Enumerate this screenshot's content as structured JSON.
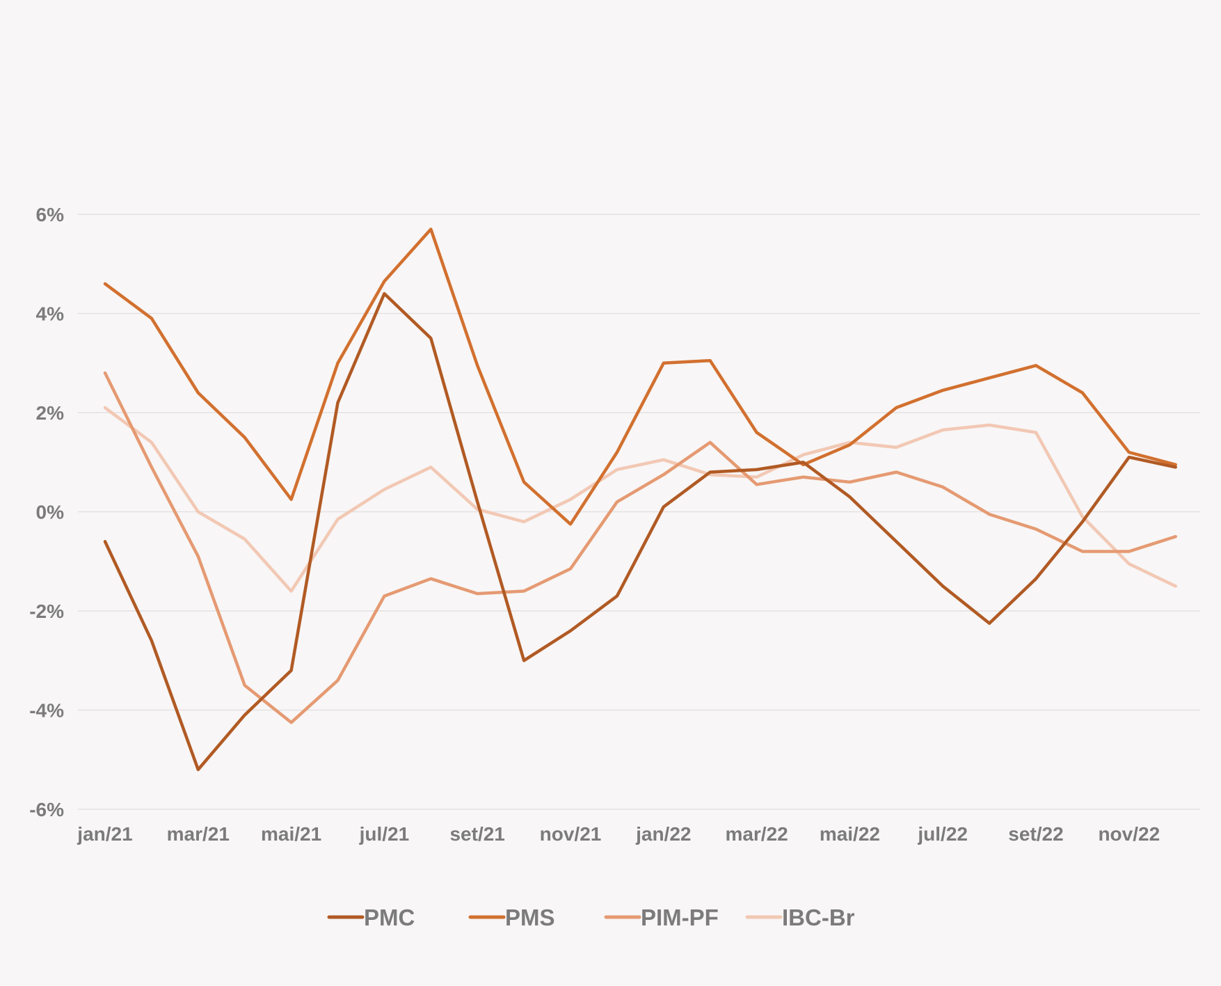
{
  "chart_data": {
    "type": "line",
    "title": "",
    "xlabel": "",
    "ylabel": "",
    "ylim": [
      -6,
      6
    ],
    "y_unit": "%",
    "y_ticks": [
      "6%",
      "4%",
      "2%",
      "0%",
      "-2%",
      "-4%",
      "-6%"
    ],
    "y_tick_values": [
      6,
      4,
      2,
      0,
      -2,
      -4,
      -6
    ],
    "grid": true,
    "legend_position": "bottom-center",
    "x": [
      "jan/21",
      "fev/21",
      "mar/21",
      "abr/21",
      "mai/21",
      "jun/21",
      "jul/21",
      "ago/21",
      "set/21",
      "out/21",
      "nov/21",
      "dez/21",
      "jan/22",
      "fev/22",
      "mar/22",
      "abr/22",
      "mai/22",
      "jun/22",
      "jul/22",
      "ago/22",
      "set/22",
      "out/22",
      "nov/22",
      "dez/22"
    ],
    "x_tick_labels": [
      "jan/21",
      "mar/21",
      "mai/21",
      "jul/21",
      "set/21",
      "nov/21",
      "jan/22",
      "mar/22",
      "mai/22",
      "jul/22",
      "set/22",
      "nov/22"
    ],
    "series": [
      {
        "name": "PMC",
        "color": "#b15a24",
        "values": [
          -0.6,
          -2.6,
          -5.2,
          -4.1,
          -3.2,
          2.2,
          4.4,
          3.5,
          0.2,
          -3.0,
          -2.4,
          -1.7,
          0.1,
          0.8,
          0.85,
          1.0,
          0.3,
          -0.6,
          -1.5,
          -2.25,
          -1.35,
          -0.2,
          1.1,
          0.9
        ]
      },
      {
        "name": "PMS",
        "color": "#d2702f",
        "values": [
          4.6,
          3.9,
          2.4,
          1.5,
          0.25,
          3.0,
          4.65,
          5.7,
          2.95,
          0.6,
          -0.25,
          1.2,
          3.0,
          3.05,
          1.6,
          0.95,
          1.35,
          2.1,
          2.45,
          2.7,
          2.95,
          2.4,
          1.2,
          0.95
        ]
      },
      {
        "name": "PIM-PF",
        "color": "#e59a72",
        "values": [
          2.8,
          0.9,
          -0.9,
          -3.5,
          -4.25,
          -3.4,
          -1.7,
          -1.35,
          -1.65,
          -1.6,
          -1.15,
          0.2,
          0.75,
          1.4,
          0.55,
          0.7,
          0.6,
          0.8,
          0.5,
          -0.05,
          -0.35,
          -0.8,
          -0.8,
          -0.5
        ]
      },
      {
        "name": "IBC-Br",
        "color": "#f2c8b4",
        "values": [
          2.1,
          1.4,
          0.0,
          -0.55,
          -1.6,
          -0.15,
          0.45,
          0.9,
          0.05,
          -0.2,
          0.25,
          0.85,
          1.05,
          0.75,
          0.7,
          1.15,
          1.4,
          1.3,
          1.65,
          1.75,
          1.6,
          -0.1,
          -1.05,
          -1.5
        ]
      }
    ]
  }
}
